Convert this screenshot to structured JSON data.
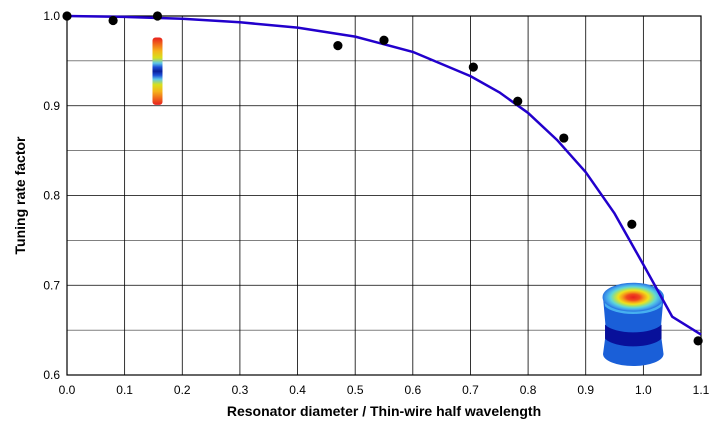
{
  "chart_data": {
    "type": "scatter",
    "title": "",
    "xlabel": "Resonator diameter / Thin-wire half wavelength",
    "ylabel": "Tuning rate factor",
    "xlim": [
      0.0,
      1.1
    ],
    "ylim": [
      0.6,
      1.0
    ],
    "x_ticks": [
      "0.0",
      "0.1",
      "0.2",
      "0.3",
      "0.4",
      "0.5",
      "0.6",
      "0.7",
      "0.8",
      "0.9",
      "1.0",
      "1.1"
    ],
    "y_ticks": [
      "0.6",
      "0.7",
      "0.8",
      "0.9",
      "1.0"
    ],
    "grid": true,
    "legend": "none",
    "series": [
      {
        "kind": "points",
        "color": "#000000",
        "x": [
          0.0,
          0.08,
          0.157,
          0.47,
          0.55,
          0.705,
          0.782,
          0.862,
          0.98,
          1.095
        ],
        "y": [
          1.0,
          0.995,
          1.0,
          0.967,
          0.973,
          0.943,
          0.905,
          0.864,
          0.768,
          0.638
        ]
      },
      {
        "kind": "line",
        "color": "#2200cc",
        "x": [
          0.0,
          0.1,
          0.2,
          0.3,
          0.4,
          0.5,
          0.6,
          0.7,
          0.75,
          0.8,
          0.85,
          0.9,
          0.95,
          1.0,
          1.05,
          1.1
        ],
        "y": [
          1.0,
          0.999,
          0.997,
          0.993,
          0.987,
          0.977,
          0.96,
          0.933,
          0.915,
          0.892,
          0.862,
          0.826,
          0.78,
          0.723,
          0.665,
          0.645
        ]
      }
    ],
    "insets": [
      {
        "name": "thin-wire-field-map",
        "x": 0.157,
        "y_top": 0.976,
        "y_bottom": 0.901
      },
      {
        "name": "cylinder-field-map",
        "x_left": 0.93,
        "x_right": 1.035,
        "y_top": 0.7,
        "y_bottom": 0.61
      }
    ]
  }
}
